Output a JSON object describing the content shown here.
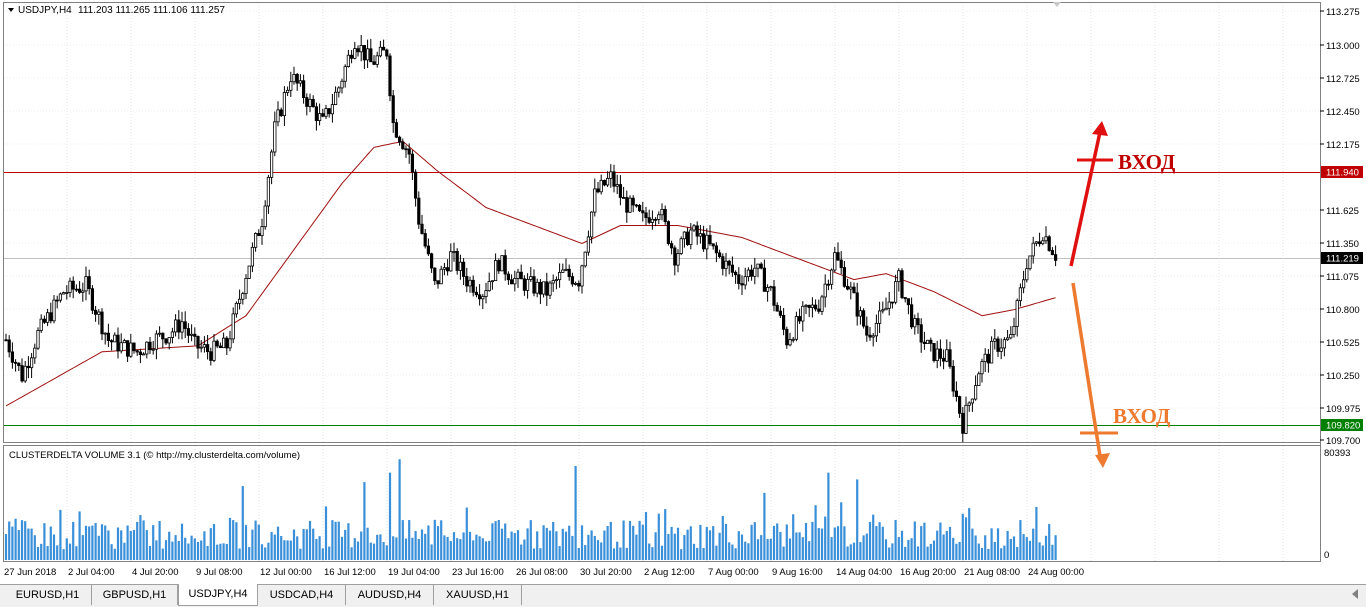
{
  "header": {
    "symbol_label": "USDJPY,H4",
    "ohlc": "111.203 111.265 111.106 111.257"
  },
  "indicator": {
    "title": "CLUSTERDELTA VOLUME 3.1 (© http://my.clusterdelta.com/volume)",
    "max_label": "80393",
    "zero_label": "0"
  },
  "price_axis": {
    "ticks": [
      "113.275",
      "113.000",
      "112.725",
      "112.450",
      "112.175",
      "111.625",
      "111.350",
      "111.075",
      "110.800",
      "110.525",
      "110.250",
      "109.975",
      "109.700"
    ],
    "current_price": "111.219",
    "red_level": "111.940",
    "green_level": "109.820"
  },
  "time_axis": {
    "labels": [
      "27 Jun 2018",
      "2 Jul 04:00",
      "4 Jul 20:00",
      "9 Jul 08:00",
      "12 Jul 00:00",
      "16 Jul 12:00",
      "19 Jul 04:00",
      "23 Jul 16:00",
      "26 Jul 08:00",
      "30 Jul 20:00",
      "2 Aug 12:00",
      "7 Aug 00:00",
      "9 Aug 16:00",
      "14 Aug 04:00",
      "16 Aug 20:00",
      "21 Aug 08:00",
      "24 Aug 00:00"
    ]
  },
  "annotations": {
    "entry_up": "ВХОД",
    "entry_down": "ВХОД"
  },
  "colors": {
    "red_level": "#c00000",
    "green_level": "#007f00",
    "ma": "#a01010",
    "volume": "#3a8fd9",
    "arrow_up": "#e01010",
    "arrow_down": "#ee7a30",
    "entry_up_text": "#c00000",
    "entry_down_text": "#ee7a30"
  },
  "tabs": [
    "EURUSD,H1",
    "GBPUSD,H1",
    "USDJPY,H4",
    "USDCAD,H4",
    "AUDUSD,H4",
    "XAUUSD,H1"
  ],
  "active_tab": "USDJPY,H4",
  "chart_data": {
    "type": "candlestick",
    "symbol": "USDJPY",
    "timeframe": "H4",
    "ylim": [
      109.7,
      113.35
    ],
    "horizontal_levels": [
      111.94,
      109.82
    ],
    "keypoints_close": [
      [
        0,
        110.55
      ],
      [
        5,
        110.25
      ],
      [
        10,
        110.6
      ],
      [
        18,
        110.95
      ],
      [
        25,
        111.0
      ],
      [
        32,
        110.55
      ],
      [
        36,
        110.5
      ],
      [
        41,
        110.45
      ],
      [
        46,
        110.55
      ],
      [
        51,
        110.6
      ],
      [
        55,
        110.7
      ],
      [
        59,
        110.5
      ],
      [
        64,
        110.45
      ],
      [
        69,
        110.5
      ],
      [
        75,
        111.1
      ],
      [
        80,
        111.55
      ],
      [
        84,
        112.3
      ],
      [
        89,
        112.75
      ],
      [
        94,
        112.55
      ],
      [
        99,
        112.35
      ],
      [
        104,
        112.65
      ],
      [
        109,
        113.05
      ],
      [
        114,
        112.85
      ],
      [
        119,
        112.95
      ],
      [
        121,
        112.35
      ],
      [
        126,
        112.1
      ],
      [
        129,
        111.55
      ],
      [
        134,
        111.0
      ],
      [
        139,
        111.25
      ],
      [
        144,
        111.05
      ],
      [
        149,
        110.95
      ],
      [
        154,
        111.2
      ],
      [
        159,
        111.05
      ],
      [
        164,
        111.0
      ],
      [
        169,
        110.95
      ],
      [
        174,
        111.1
      ],
      [
        179,
        111.05
      ],
      [
        184,
        111.75
      ],
      [
        189,
        111.9
      ],
      [
        193,
        111.7
      ],
      [
        199,
        111.55
      ],
      [
        204,
        111.65
      ],
      [
        209,
        111.25
      ],
      [
        214,
        111.45
      ],
      [
        219,
        111.35
      ],
      [
        224,
        111.2
      ],
      [
        229,
        111.05
      ],
      [
        234,
        111.15
      ],
      [
        239,
        110.95
      ],
      [
        244,
        110.55
      ],
      [
        249,
        110.75
      ],
      [
        254,
        110.85
      ],
      [
        259,
        111.25
      ],
      [
        264,
        110.95
      ],
      [
        269,
        110.6
      ],
      [
        274,
        110.75
      ],
      [
        279,
        111.05
      ],
      [
        284,
        110.65
      ],
      [
        289,
        110.45
      ],
      [
        294,
        110.4
      ],
      [
        299,
        109.85
      ],
      [
        304,
        110.3
      ],
      [
        309,
        110.5
      ],
      [
        314,
        110.55
      ],
      [
        319,
        111.2
      ],
      [
        324,
        111.45
      ],
      [
        328,
        111.26
      ]
    ],
    "ma_keypoints": [
      [
        0,
        110.0
      ],
      [
        30,
        110.45
      ],
      [
        60,
        110.5
      ],
      [
        75,
        110.75
      ],
      [
        90,
        111.3
      ],
      [
        105,
        111.85
      ],
      [
        115,
        112.15
      ],
      [
        124,
        112.2
      ],
      [
        135,
        111.95
      ],
      [
        150,
        111.65
      ],
      [
        170,
        111.45
      ],
      [
        180,
        111.35
      ],
      [
        192,
        111.5
      ],
      [
        210,
        111.5
      ],
      [
        230,
        111.4
      ],
      [
        250,
        111.2
      ],
      [
        265,
        111.05
      ],
      [
        275,
        111.1
      ],
      [
        290,
        110.95
      ],
      [
        305,
        110.75
      ],
      [
        315,
        110.8
      ],
      [
        328,
        110.9
      ]
    ],
    "volume": {
      "max": 80393,
      "peaks": [
        [
          74,
          55000
        ],
        [
          112,
          58000
        ],
        [
          120,
          65000
        ],
        [
          123,
          75000
        ],
        [
          178,
          70000
        ],
        [
          237,
          50000
        ],
        [
          257,
          65000
        ],
        [
          266,
          60000
        ]
      ]
    }
  }
}
